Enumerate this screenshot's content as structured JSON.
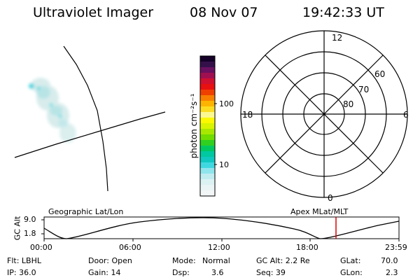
{
  "header": {
    "title": "Ultraviolet Imager",
    "date": "08 Nov 07",
    "time": "19:42:33 UT"
  },
  "colorbar": {
    "label": "photon cm⁻²s⁻¹",
    "ticks": [
      "100",
      "10"
    ]
  },
  "polar_plot": {
    "mlt_labels": {
      "top": "12",
      "left": "18",
      "right": "6",
      "bottom": "0"
    },
    "lat_labels": [
      "60",
      "70",
      "80"
    ]
  },
  "timeline": {
    "ylabel": "GC Alt",
    "ymax": "9.0",
    "ymin": "1.8",
    "left_title": "Geographic Lat/Lon",
    "right_title": "Apex MLat/MLT",
    "x_ticks": [
      "00:00",
      "06:00",
      "12:00",
      "18:00",
      "23:59"
    ],
    "current_marker_color": "#dd0000"
  },
  "info": {
    "col1": [
      "Flt: LBHL",
      "IP: 36.0"
    ],
    "col2": [
      "Door: Open",
      "Gain: 14"
    ],
    "col3_labels": [
      "Mode:",
      "Dsp:"
    ],
    "col3_values": [
      "Normal",
      "3.6"
    ],
    "col4": [
      "GC Alt: 2.2 Re",
      "Seq: 39"
    ],
    "col5_labels": [
      "GLat:",
      "GLon:"
    ],
    "col5_values": [
      "70.0",
      "2.3"
    ]
  },
  "colors": {
    "aurora_dim": "#d8ecec",
    "aurora_mid": "#b8e4e6",
    "aurora_bright": "#55d6df"
  }
}
